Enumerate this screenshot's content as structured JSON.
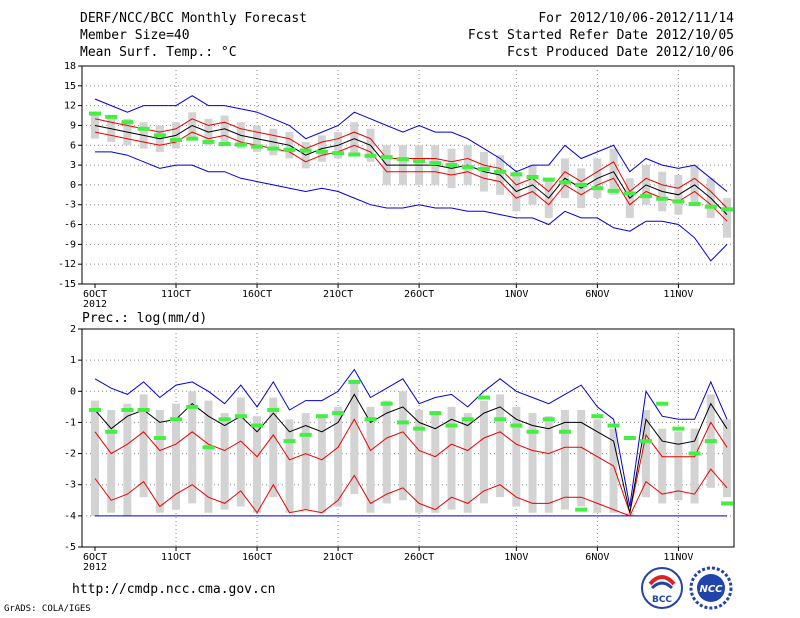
{
  "header": {
    "title": "DERF/NCC/BCC Monthly Forecast",
    "member_size": "Member Size=40",
    "variable": "Mean Surf. Temp.: °C",
    "period": "For 2012/10/06-2012/11/14",
    "start_date": "Fcst Started Refer Date 2012/10/05",
    "produced_date": "Fcst Produced Date 2012/10/06"
  },
  "footer": {
    "url": "http://cmdp.ncc.cma.gov.cn",
    "grads": "GrADS: COLA/IGES",
    "logo_bcc": "BCC",
    "logo_ncc": "NCC"
  },
  "colors": {
    "max_min": "#0000dd",
    "plus_minus_sd": "#ee0000",
    "mean": "#000000",
    "member_bar": "#d3d3d3",
    "climatology": "#44ee44"
  },
  "chart_data": [
    {
      "type": "line",
      "title": "Mean Surf. Temp.: °C",
      "ylabel": "°C",
      "ylim": [
        -15,
        18
      ],
      "yticks": [
        18,
        15,
        12,
        9,
        6,
        3,
        0,
        -3,
        -6,
        -9,
        -12,
        -15
      ],
      "x_tick_labels": [
        {
          "day": 0,
          "label": "6OCT",
          "sub": "2012"
        },
        {
          "day": 5,
          "label": "11OCT"
        },
        {
          "day": 10,
          "label": "16OCT"
        },
        {
          "day": 15,
          "label": "21OCT"
        },
        {
          "day": 20,
          "label": "26OCT"
        },
        {
          "day": 26,
          "label": "1NOV"
        },
        {
          "day": 31,
          "label": "6NOV"
        },
        {
          "day": 36,
          "label": "11NOV"
        }
      ],
      "grid": true,
      "days": 40,
      "series": [
        {
          "name": "max",
          "values": [
            13,
            12,
            11,
            12,
            12,
            12,
            13.5,
            12,
            12,
            11.5,
            11,
            10,
            9,
            7,
            8,
            9,
            11,
            10,
            9,
            8,
            9,
            8,
            8,
            7,
            5.5,
            4,
            2,
            3,
            3,
            6,
            4,
            5,
            6,
            2,
            4,
            3,
            2.5,
            3,
            1,
            -1
          ]
        },
        {
          "name": "plus_sd",
          "values": [
            10,
            9.5,
            9,
            8.5,
            8,
            8.5,
            10,
            9,
            9.5,
            8.5,
            8,
            7.5,
            7,
            5.5,
            6.5,
            7,
            8,
            7,
            4,
            4,
            4,
            4,
            3.5,
            4,
            3,
            2.5,
            0,
            1,
            -1,
            2,
            0.5,
            2,
            3.5,
            -1,
            1,
            0,
            -0.5,
            1,
            -1,
            -3.5
          ]
        },
        {
          "name": "mean",
          "values": [
            9,
            8.5,
            8,
            7.5,
            7,
            7.5,
            9,
            8,
            8.5,
            7.5,
            7,
            6.5,
            6,
            4.5,
            5.5,
            6,
            7,
            6,
            3,
            3,
            3,
            3,
            2.5,
            3,
            2,
            1.5,
            -1,
            0,
            -2,
            1,
            -0.5,
            1,
            2,
            -2,
            0,
            -1,
            -1.5,
            0,
            -2,
            -4.5
          ]
        },
        {
          "name": "minus_sd",
          "values": [
            8,
            7.5,
            7,
            6.5,
            6,
            6.5,
            8,
            7,
            7.5,
            6.5,
            6,
            5.5,
            5,
            3.5,
            4.5,
            5,
            6,
            5,
            2,
            2,
            2,
            2,
            1.5,
            2,
            1,
            0.5,
            -2,
            -1,
            -3,
            0,
            -1.5,
            0,
            1,
            -3,
            -1,
            -2,
            -2.5,
            -1,
            -3,
            -5.5
          ]
        },
        {
          "name": "min",
          "values": [
            5,
            5,
            4.5,
            3.5,
            2.5,
            3,
            3,
            2,
            2,
            1,
            0.5,
            0,
            -0.5,
            -1,
            -0.5,
            -1,
            -2,
            -3,
            -3.5,
            -3.5,
            -3,
            -3.5,
            -3.5,
            -4,
            -4,
            -4.5,
            -5,
            -5,
            -6,
            -4,
            -5,
            -5,
            -6.5,
            -7,
            -5.5,
            -5.5,
            -6,
            -8,
            -11.5,
            -9
          ]
        },
        {
          "name": "member_bar_top",
          "values": [
            11,
            10.5,
            10,
            9.5,
            9,
            9.5,
            11,
            10,
            10.5,
            9.5,
            9,
            8.5,
            8,
            6.5,
            7.5,
            8,
            9.5,
            8.5,
            6,
            6,
            6,
            6,
            5.5,
            6,
            5,
            4.5,
            2,
            3,
            1,
            4,
            2.5,
            4,
            5.5,
            1,
            3,
            2,
            1.5,
            3,
            1,
            -2
          ]
        },
        {
          "name": "member_bar_bottom",
          "values": [
            7,
            6.5,
            6,
            5.5,
            5,
            5.5,
            7,
            6,
            6.5,
            5.5,
            5,
            4.5,
            4,
            2.5,
            3.5,
            4,
            4.5,
            3.5,
            0,
            0,
            0,
            0,
            -0.5,
            0,
            -1,
            -1.5,
            -4,
            -3,
            -5,
            -2,
            -3.5,
            -2,
            -1.5,
            -5,
            -3,
            -4,
            -4.5,
            -3,
            -5,
            -8
          ]
        },
        {
          "name": "climatology",
          "values": [
            10.8,
            10.3,
            9.5,
            8.5,
            7.5,
            6.8,
            7,
            6.5,
            6.2,
            6.1,
            5.8,
            5.5,
            5.3,
            5.2,
            5,
            4.8,
            4.6,
            4.4,
            4.2,
            3.9,
            3.6,
            3.3,
            3,
            2.7,
            2.4,
            2,
            1.6,
            1.2,
            0.8,
            0.4,
            0,
            -0.5,
            -0.9,
            -1.3,
            -1.7,
            -2.1,
            -2.5,
            -2.9,
            -3.3,
            -3.7
          ]
        }
      ]
    },
    {
      "type": "line",
      "title": "Prec.: log(mm/d)",
      "ylabel": "log(mm/d)",
      "ylim": [
        -5,
        2
      ],
      "yticks": [
        2,
        1,
        0,
        -1,
        -2,
        -3,
        -4,
        -5
      ],
      "x_tick_labels": [
        {
          "day": 0,
          "label": "6OCT",
          "sub": "2012"
        },
        {
          "day": 5,
          "label": "11OCT"
        },
        {
          "day": 10,
          "label": "16OCT"
        },
        {
          "day": 15,
          "label": "21OCT"
        },
        {
          "day": 20,
          "label": "26OCT"
        },
        {
          "day": 26,
          "label": "1NOV"
        },
        {
          "day": 31,
          "label": "6NOV"
        },
        {
          "day": 36,
          "label": "11NOV"
        }
      ],
      "grid": true,
      "days": 40,
      "series": [
        {
          "name": "max",
          "values": [
            0.4,
            0.1,
            -0.1,
            0.3,
            -0.2,
            0.2,
            0.3,
            0,
            -0.4,
            0.2,
            -0.5,
            0.3,
            -0.6,
            -0.3,
            -0.3,
            0,
            0.7,
            -0.2,
            0.1,
            0.4,
            -0.4,
            -0.2,
            -0.1,
            -0.5,
            0,
            0.4,
            0,
            -0.2,
            -0.4,
            -0.1,
            0.2,
            -0.5,
            -0.9,
            -3.7,
            0,
            -0.8,
            -0.9,
            -0.9,
            0.3,
            -0.9
          ]
        },
        {
          "name": "mean",
          "values": [
            -0.6,
            -1.2,
            -0.8,
            -0.6,
            -1,
            -0.9,
            -0.4,
            -0.8,
            -1.1,
            -0.8,
            -1.3,
            -0.7,
            -1.3,
            -1.1,
            -1.3,
            -1,
            -0.1,
            -1,
            -0.7,
            -0.5,
            -1,
            -1.2,
            -0.9,
            -1.1,
            -0.7,
            -0.5,
            -0.9,
            -1.1,
            -1.2,
            -1,
            -1,
            -1.3,
            -1.6,
            -3.9,
            -0.9,
            -1.6,
            -1.7,
            -1.6,
            -0.4,
            -1.2
          ]
        },
        {
          "name": "plus_sd",
          "values": [
            -1.3,
            -2,
            -1.7,
            -1.3,
            -1.9,
            -1.7,
            -1.3,
            -1.7,
            -1.9,
            -1.6,
            -2.1,
            -1.4,
            -2.2,
            -2,
            -2.2,
            -1.8,
            -0.9,
            -1.9,
            -1.5,
            -1.3,
            -1.9,
            -2.1,
            -1.7,
            -1.9,
            -1.5,
            -1.3,
            -1.7,
            -1.9,
            -2,
            -1.8,
            -1.8,
            -2.1,
            -2.4,
            -3.9,
            -1.4,
            -2.1,
            -2.1,
            -2.1,
            -1,
            -1.8
          ]
        },
        {
          "name": "minus_sd",
          "values": [
            -2.8,
            -3.5,
            -3.3,
            -2.9,
            -3.7,
            -3.3,
            -3,
            -3.4,
            -3.6,
            -3.2,
            -3.9,
            -3,
            -3.9,
            -3.8,
            -3.9,
            -3.5,
            -2.7,
            -3.6,
            -3.3,
            -3.1,
            -3.6,
            -3.8,
            -3.4,
            -3.6,
            -3.2,
            -3,
            -3.4,
            -3.6,
            -3.6,
            -3.4,
            -3.4,
            -3.6,
            -3.8,
            -4,
            -2.9,
            -3.3,
            -3.2,
            -3.3,
            -2.5,
            -3.1
          ]
        },
        {
          "name": "min",
          "values": [
            -4,
            -4,
            -4,
            -4,
            -4,
            -4,
            -4,
            -4,
            -4,
            -4,
            -4,
            -4,
            -4,
            -4,
            -4,
            -4,
            -4,
            -4,
            -4,
            -4,
            -4,
            -4,
            -4,
            -4,
            -4,
            -4,
            -4,
            -4,
            -4,
            -4,
            -4,
            -4,
            -4,
            -4,
            -4,
            -4,
            -4,
            -4,
            -4,
            -4
          ]
        },
        {
          "name": "member_bar_top",
          "values": [
            -0.3,
            -0.6,
            -0.4,
            -0.1,
            -0.6,
            -0.4,
            0,
            -0.3,
            -0.7,
            -0.2,
            -0.8,
            -0.2,
            -0.9,
            -0.7,
            -0.8,
            -0.5,
            0.3,
            -0.5,
            -0.3,
            0,
            -0.6,
            -0.7,
            -0.5,
            -0.7,
            -0.3,
            -0.1,
            -0.5,
            -0.7,
            -0.8,
            -0.6,
            -0.6,
            -0.9,
            -1.2,
            -3.9,
            -0.6,
            -1.2,
            -1.3,
            -1.2,
            -0.1,
            -0.9
          ]
        },
        {
          "name": "member_bar_bottom",
          "values": [
            -4,
            -3.9,
            -4,
            -3.4,
            -3.9,
            -3.8,
            -3.6,
            -3.9,
            -3.8,
            -3.7,
            -3.9,
            -3.4,
            -3.9,
            -3.8,
            -3.9,
            -3.7,
            -3.3,
            -3.9,
            -3.6,
            -3.5,
            -3.9,
            -3.9,
            -3.8,
            -3.9,
            -3.6,
            -3.4,
            -3.7,
            -3.9,
            -3.9,
            -3.8,
            -3.7,
            -3.9,
            -3.9,
            -4,
            -3.4,
            -3.6,
            -3.5,
            -3.6,
            -3.1,
            -3.4
          ]
        },
        {
          "name": "climatology",
          "values": [
            -0.6,
            -1.3,
            -0.6,
            -0.6,
            -1.5,
            -0.9,
            -0.5,
            -1.8,
            -0.9,
            -0.8,
            -1.1,
            -0.6,
            -1.6,
            -1.4,
            -0.8,
            -0.7,
            0.3,
            -0.9,
            -0.4,
            -1,
            -1.2,
            -0.7,
            -1.1,
            -0.9,
            -0.2,
            -0.9,
            -1.1,
            -1.3,
            -0.9,
            -1.3,
            -3.8,
            -0.8,
            -1.1,
            -1.5,
            -1.6,
            -0.4,
            -1.2,
            -2,
            -1.6,
            -3.6
          ]
        }
      ]
    }
  ]
}
